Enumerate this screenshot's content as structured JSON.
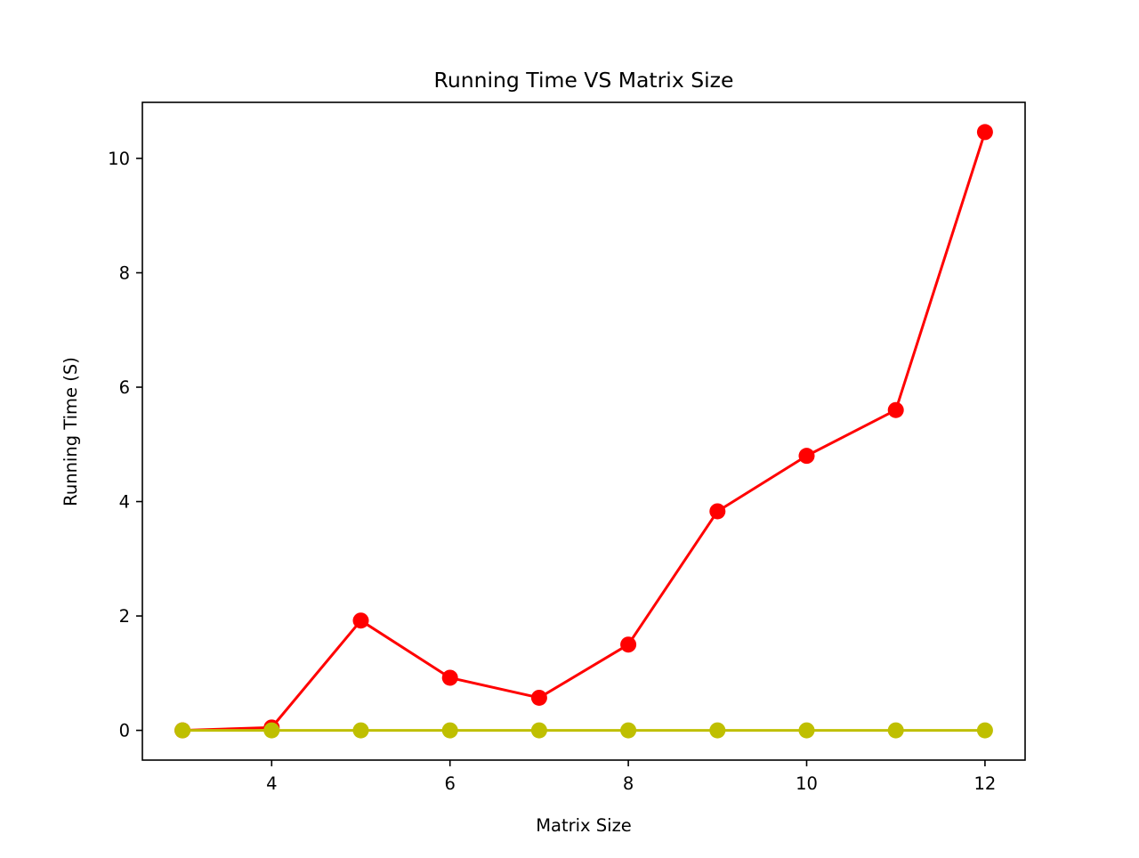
{
  "chart_data": {
    "type": "line",
    "title": "Running Time VS Matrix Size",
    "xlabel": "Matrix Size",
    "ylabel": "Running Time (S)",
    "x": [
      3,
      4,
      5,
      6,
      7,
      8,
      9,
      10,
      11,
      12
    ],
    "xlim": [
      2.55,
      12.45
    ],
    "ylim": [
      -0.52,
      10.98
    ],
    "xticks": [
      4,
      6,
      8,
      10,
      12
    ],
    "yticks": [
      0,
      2,
      4,
      6,
      8,
      10
    ],
    "grid": false,
    "legend": "none",
    "series": [
      {
        "color": "#ff0000",
        "marker": "circle",
        "values": [
          0.0,
          0.05,
          1.92,
          0.92,
          0.57,
          1.5,
          3.83,
          4.8,
          5.6,
          10.46
        ]
      },
      {
        "color": "#bfbf00",
        "marker": "circle",
        "values": [
          0.0,
          0.0,
          0.0,
          0.0,
          0.0,
          0.0,
          0.0,
          0.0,
          0.0,
          0.0
        ]
      }
    ]
  }
}
